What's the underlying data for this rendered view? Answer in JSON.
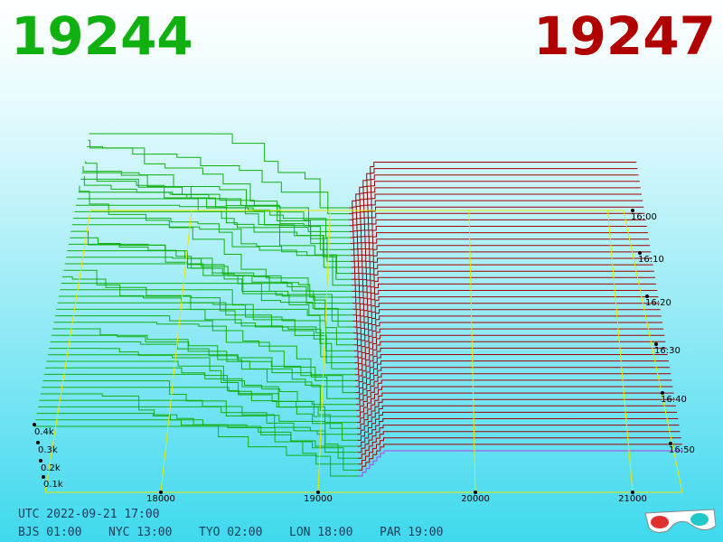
{
  "header": {
    "bid": "19244",
    "ask": "19247"
  },
  "price_axis": [
    18000,
    19000,
    20000,
    21000
  ],
  "time_axis": [
    "16:00",
    "16:10",
    "16:20",
    "16:30",
    "16:40",
    "16:50"
  ],
  "depth_axis": [
    "0.4k",
    "0.3k",
    "0.2k",
    "0.1k"
  ],
  "footer": {
    "utc": "UTC 2022-09-21 17:00",
    "zones": [
      "BJS 01:00",
      "NYC 13:00",
      "TYO 02:00",
      "LON 18:00",
      "PAR 19:00"
    ]
  }
}
